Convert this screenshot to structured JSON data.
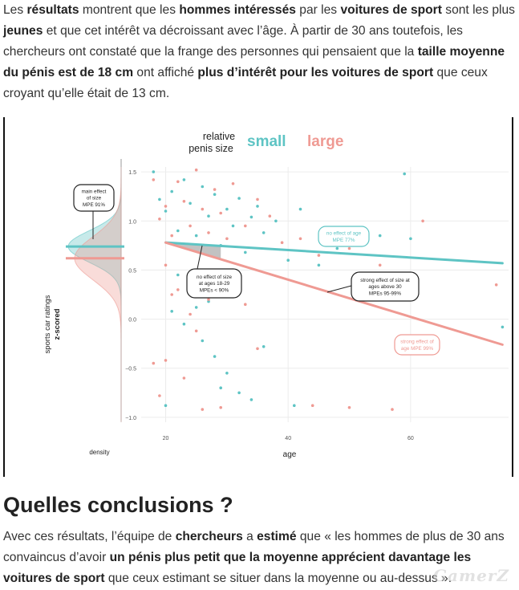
{
  "article": {
    "p1": {
      "s1": "Les ",
      "b1": "résultats",
      "s2": " montrent que les ",
      "b2": "hommes intéressés",
      "s3": " par les ",
      "b3": "voitures de sport",
      "s4": " sont les plus ",
      "b4": "jeunes",
      "s5": " et que cet intérêt va décroissant avec l’âge. À partir de 30 ans toutefois, les chercheurs ont constaté que la frange des personnes qui pensaient que la ",
      "b5": "taille moyenne du pénis est de 18 cm",
      "s6": " ont affiché ",
      "b6": "plus d’intérêt pour les voitures de sport",
      "s7": " que ceux croyant qu’elle était de 13 cm."
    },
    "heading": "Quelles conclusions ?",
    "p2": {
      "s1": "Avec ces résultats, l’équipe de ",
      "b1": "chercheurs",
      "s2": " a ",
      "b2": "estimé",
      "s3": " que « les hommes de plus de 30 ans convaincus d’avoir ",
      "b3": "un pénis plus petit que la moyenne apprécient davantage les voitures de sport",
      "s4": " que ceux estimant se situer dans la moyenne ou au-dessus »."
    },
    "watermark": "GamerZ"
  },
  "chart_data": {
    "type": "scatter",
    "legend": {
      "title_line1": "relative",
      "title_line2": "penis size",
      "small": "small",
      "large": "large"
    },
    "colors": {
      "small": "#5ec4c4",
      "large": "#ef9a93"
    },
    "ylabel_line1": "sports car ratings",
    "ylabel_line2": "z-scored",
    "xlabel": "age",
    "density_label": "density",
    "xlim": [
      16,
      76
    ],
    "ylim": [
      -1.05,
      1.55
    ],
    "x_ticks": [
      20,
      40,
      60
    ],
    "y_ticks": [
      1.5,
      1.0,
      0.5,
      0.0,
      -0.5,
      -1.0
    ],
    "y_tick_labels": [
      "1.5",
      "1.0",
      "0.5",
      "0.0",
      "−0.5",
      "−1.0"
    ],
    "density_means": {
      "small": 0.74,
      "large": 0.62
    },
    "series": [
      {
        "name": "small",
        "line": [
          [
            20,
            0.78
          ],
          [
            75,
            0.57
          ]
        ],
        "points": [
          [
            18,
            1.5
          ],
          [
            19,
            1.22
          ],
          [
            20,
            1.1
          ],
          [
            21,
            1.3
          ],
          [
            22,
            0.9
          ],
          [
            23,
            1.42
          ],
          [
            24,
            1.18
          ],
          [
            25,
            0.85
          ],
          [
            26,
            1.35
          ],
          [
            27,
            1.05
          ],
          [
            28,
            1.27
          ],
          [
            29,
            0.75
          ],
          [
            30,
            1.12
          ],
          [
            31,
            0.95
          ],
          [
            32,
            1.23
          ],
          [
            33,
            0.68
          ],
          [
            34,
            1.04
          ],
          [
            35,
            1.15
          ],
          [
            36,
            0.88
          ],
          [
            38,
            1.0
          ],
          [
            40,
            0.6
          ],
          [
            42,
            1.12
          ],
          [
            45,
            0.55
          ],
          [
            48,
            0.72
          ],
          [
            52,
            0.9
          ],
          [
            55,
            0.85
          ],
          [
            59,
            1.48
          ],
          [
            60,
            0.82
          ],
          [
            22,
            0.45
          ],
          [
            24,
            0.32
          ],
          [
            25,
            0.12
          ],
          [
            27,
            0.18
          ],
          [
            21,
            0.08
          ],
          [
            23,
            -0.05
          ],
          [
            26,
            -0.22
          ],
          [
            28,
            -0.38
          ],
          [
            30,
            -0.55
          ],
          [
            32,
            -0.75
          ],
          [
            34,
            -0.82
          ],
          [
            20,
            -0.88
          ],
          [
            29,
            -0.7
          ],
          [
            41,
            -0.88
          ],
          [
            36,
            -0.28
          ],
          [
            75,
            -0.08
          ]
        ]
      },
      {
        "name": "large",
        "line": [
          [
            20,
            0.78
          ],
          [
            75,
            -0.26
          ]
        ],
        "points": [
          [
            18,
            1.42
          ],
          [
            19,
            1.02
          ],
          [
            20,
            1.15
          ],
          [
            21,
            0.85
          ],
          [
            22,
            1.4
          ],
          [
            23,
            1.2
          ],
          [
            24,
            0.95
          ],
          [
            25,
            1.52
          ],
          [
            26,
            1.12
          ],
          [
            27,
            0.88
          ],
          [
            28,
            1.32
          ],
          [
            29,
            1.08
          ],
          [
            30,
            0.82
          ],
          [
            31,
            1.38
          ],
          [
            33,
            0.95
          ],
          [
            35,
            1.22
          ],
          [
            37,
            1.05
          ],
          [
            39,
            0.78
          ],
          [
            42,
            0.82
          ],
          [
            45,
            0.65
          ],
          [
            50,
            0.72
          ],
          [
            55,
            0.55
          ],
          [
            62,
            1.0
          ],
          [
            74,
            0.35
          ],
          [
            20,
            0.55
          ],
          [
            22,
            0.3
          ],
          [
            24,
            0.05
          ],
          [
            25,
            -0.12
          ],
          [
            27,
            0.2
          ],
          [
            29,
            0.38
          ],
          [
            18,
            -0.45
          ],
          [
            19,
            -0.78
          ],
          [
            20,
            -0.42
          ],
          [
            21,
            0.25
          ],
          [
            23,
            -0.6
          ],
          [
            26,
            -0.92
          ],
          [
            29,
            -0.9
          ],
          [
            35,
            -0.3
          ],
          [
            44,
            -0.88
          ],
          [
            50,
            -0.9
          ],
          [
            57,
            -0.92
          ],
          [
            33,
            0.15
          ]
        ]
      }
    ],
    "annotations": [
      {
        "id": "main-effect",
        "lines": [
          "main effect",
          "of size",
          "MPE 91%"
        ],
        "color": "#222"
      },
      {
        "id": "no-effect-young",
        "lines": [
          "no effect of size",
          "at ages 18-29",
          "MPEs < 90%"
        ],
        "color": "#222"
      },
      {
        "id": "no-effect-age",
        "lines": [
          "no effect of age",
          "MPE 77%"
        ],
        "color": "#5ec4c4"
      },
      {
        "id": "strong-effect-size",
        "lines": [
          "strong effect of size at",
          "ages above 30",
          "MPEs 95-99%"
        ],
        "color": "#222"
      },
      {
        "id": "strong-effect-age",
        "lines": [
          "strong effect of",
          "age MPE 99%"
        ],
        "color": "#ef9a93"
      }
    ]
  }
}
